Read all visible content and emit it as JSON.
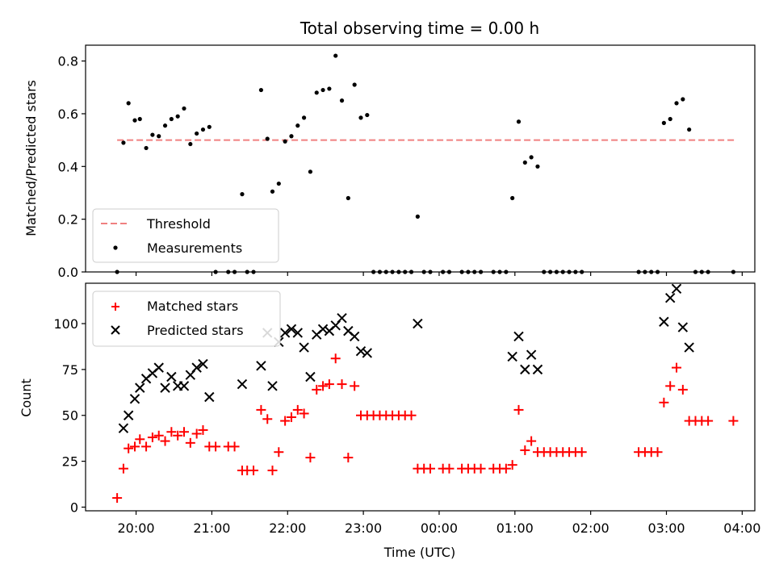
{
  "chart_data": [
    {
      "type": "scatter",
      "title": "Total observing time = 0.00 h",
      "ylabel": "Matched/Predicted stars",
      "xlim": [
        "19:20",
        "04:10"
      ],
      "ylim": [
        0,
        0.86
      ],
      "y_ticks": [
        0.0,
        0.2,
        0.4,
        0.6,
        0.8
      ],
      "y_tick_labels": [
        "0.0",
        "0.2",
        "0.4",
        "0.6",
        "0.8"
      ],
      "threshold": {
        "name": "Threshold",
        "value": 0.5,
        "x_range": [
          "19:45",
          "03:55"
        ],
        "color": "#f08080",
        "style": "dashed"
      },
      "series": [
        {
          "name": "Measurements",
          "color": "#000000",
          "marker": "dot",
          "points": [
            {
              "x": "19:45",
              "y": 0.0
            },
            {
              "x": "19:50",
              "y": 0.49
            },
            {
              "x": "19:54",
              "y": 0.64
            },
            {
              "x": "19:59",
              "y": 0.575
            },
            {
              "x": "20:03",
              "y": 0.58
            },
            {
              "x": "20:08",
              "y": 0.47
            },
            {
              "x": "20:13",
              "y": 0.52
            },
            {
              "x": "20:18",
              "y": 0.515
            },
            {
              "x": "20:23",
              "y": 0.555
            },
            {
              "x": "20:28",
              "y": 0.58
            },
            {
              "x": "20:33",
              "y": 0.59
            },
            {
              "x": "20:38",
              "y": 0.62
            },
            {
              "x": "20:43",
              "y": 0.485
            },
            {
              "x": "20:48",
              "y": 0.525
            },
            {
              "x": "20:53",
              "y": 0.54
            },
            {
              "x": "20:58",
              "y": 0.55
            },
            {
              "x": "21:03",
              "y": 0.0
            },
            {
              "x": "21:13",
              "y": 0.0
            },
            {
              "x": "21:18",
              "y": 0.0
            },
            {
              "x": "21:24",
              "y": 0.295
            },
            {
              "x": "21:28",
              "y": 0.0
            },
            {
              "x": "21:33",
              "y": 0.0
            },
            {
              "x": "21:39",
              "y": 0.69
            },
            {
              "x": "21:44",
              "y": 0.505
            },
            {
              "x": "21:48",
              "y": 0.305
            },
            {
              "x": "21:53",
              "y": 0.335
            },
            {
              "x": "21:58",
              "y": 0.495
            },
            {
              "x": "22:03",
              "y": 0.515
            },
            {
              "x": "22:08",
              "y": 0.555
            },
            {
              "x": "22:13",
              "y": 0.585
            },
            {
              "x": "22:18",
              "y": 0.38
            },
            {
              "x": "22:23",
              "y": 0.68
            },
            {
              "x": "22:28",
              "y": 0.69
            },
            {
              "x": "22:33",
              "y": 0.695
            },
            {
              "x": "22:38",
              "y": 0.82
            },
            {
              "x": "22:43",
              "y": 0.65
            },
            {
              "x": "22:48",
              "y": 0.28
            },
            {
              "x": "22:53",
              "y": 0.71
            },
            {
              "x": "22:58",
              "y": 0.585
            },
            {
              "x": "23:03",
              "y": 0.595
            },
            {
              "x": "23:08",
              "y": 0.0
            },
            {
              "x": "23:13",
              "y": 0.0
            },
            {
              "x": "23:18",
              "y": 0.0
            },
            {
              "x": "23:23",
              "y": 0.0
            },
            {
              "x": "23:28",
              "y": 0.0
            },
            {
              "x": "23:33",
              "y": 0.0
            },
            {
              "x": "23:38",
              "y": 0.0
            },
            {
              "x": "23:43",
              "y": 0.21
            },
            {
              "x": "23:48",
              "y": 0.0
            },
            {
              "x": "23:53",
              "y": 0.0
            },
            {
              "x": "00:03",
              "y": 0.0
            },
            {
              "x": "00:08",
              "y": 0.0
            },
            {
              "x": "00:18",
              "y": 0.0
            },
            {
              "x": "00:23",
              "y": 0.0
            },
            {
              "x": "00:28",
              "y": 0.0
            },
            {
              "x": "00:33",
              "y": 0.0
            },
            {
              "x": "00:43",
              "y": 0.0
            },
            {
              "x": "00:48",
              "y": 0.0
            },
            {
              "x": "00:53",
              "y": 0.0
            },
            {
              "x": "00:58",
              "y": 0.28
            },
            {
              "x": "01:03",
              "y": 0.57
            },
            {
              "x": "01:08",
              "y": 0.415
            },
            {
              "x": "01:13",
              "y": 0.435
            },
            {
              "x": "01:18",
              "y": 0.4
            },
            {
              "x": "01:23",
              "y": 0.0
            },
            {
              "x": "01:28",
              "y": 0.0
            },
            {
              "x": "01:33",
              "y": 0.0
            },
            {
              "x": "01:38",
              "y": 0.0
            },
            {
              "x": "01:43",
              "y": 0.0
            },
            {
              "x": "01:48",
              "y": 0.0
            },
            {
              "x": "01:53",
              "y": 0.0
            },
            {
              "x": "02:38",
              "y": 0.0
            },
            {
              "x": "02:43",
              "y": 0.0
            },
            {
              "x": "02:48",
              "y": 0.0
            },
            {
              "x": "02:53",
              "y": 0.0
            },
            {
              "x": "02:58",
              "y": 0.565
            },
            {
              "x": "03:03",
              "y": 0.58
            },
            {
              "x": "03:08",
              "y": 0.64
            },
            {
              "x": "03:13",
              "y": 0.655
            },
            {
              "x": "03:18",
              "y": 0.54
            },
            {
              "x": "03:23",
              "y": 0.0
            },
            {
              "x": "03:28",
              "y": 0.0
            },
            {
              "x": "03:33",
              "y": 0.0
            },
            {
              "x": "03:53",
              "y": 0.0
            }
          ]
        }
      ],
      "legend": {
        "placement": "lower-left",
        "entries": [
          "Threshold",
          "Measurements"
        ]
      }
    },
    {
      "type": "scatter",
      "xlabel": "Time (UTC)",
      "ylabel": "Count",
      "xlim": [
        "19:20",
        "04:10"
      ],
      "ylim": [
        -2,
        122
      ],
      "x_ticks": [
        "20:00",
        "21:00",
        "22:00",
        "23:00",
        "00:00",
        "01:00",
        "02:00",
        "03:00",
        "04:00"
      ],
      "y_ticks": [
        0,
        25,
        50,
        75,
        100
      ],
      "y_tick_labels": [
        "0",
        "25",
        "50",
        "75",
        "100"
      ],
      "series": [
        {
          "name": "Matched stars",
          "color": "#ff0000",
          "marker": "plus",
          "points": [
            {
              "x": "19:45",
              "y": 5
            },
            {
              "x": "19:50",
              "y": 21
            },
            {
              "x": "19:54",
              "y": 32
            },
            {
              "x": "19:59",
              "y": 33
            },
            {
              "x": "20:03",
              "y": 37
            },
            {
              "x": "20:08",
              "y": 33
            },
            {
              "x": "20:13",
              "y": 38
            },
            {
              "x": "20:18",
              "y": 39
            },
            {
              "x": "20:23",
              "y": 36
            },
            {
              "x": "20:28",
              "y": 41
            },
            {
              "x": "20:33",
              "y": 39
            },
            {
              "x": "20:38",
              "y": 41
            },
            {
              "x": "20:43",
              "y": 35
            },
            {
              "x": "20:48",
              "y": 40
            },
            {
              "x": "20:53",
              "y": 42
            },
            {
              "x": "20:58",
              "y": 33
            },
            {
              "x": "21:03",
              "y": 33
            },
            {
              "x": "21:13",
              "y": 33
            },
            {
              "x": "21:18",
              "y": 33
            },
            {
              "x": "21:24",
              "y": 20
            },
            {
              "x": "21:28",
              "y": 20
            },
            {
              "x": "21:33",
              "y": 20
            },
            {
              "x": "21:39",
              "y": 53
            },
            {
              "x": "21:44",
              "y": 48
            },
            {
              "x": "21:48",
              "y": 20
            },
            {
              "x": "21:53",
              "y": 30
            },
            {
              "x": "21:58",
              "y": 47
            },
            {
              "x": "22:03",
              "y": 49
            },
            {
              "x": "22:08",
              "y": 53
            },
            {
              "x": "22:13",
              "y": 51
            },
            {
              "x": "22:18",
              "y": 27
            },
            {
              "x": "22:23",
              "y": 64
            },
            {
              "x": "22:28",
              "y": 66
            },
            {
              "x": "22:33",
              "y": 67
            },
            {
              "x": "22:38",
              "y": 81
            },
            {
              "x": "22:43",
              "y": 67
            },
            {
              "x": "22:48",
              "y": 27
            },
            {
              "x": "22:53",
              "y": 66
            },
            {
              "x": "22:58",
              "y": 50
            },
            {
              "x": "23:03",
              "y": 50
            },
            {
              "x": "23:08",
              "y": 50
            },
            {
              "x": "23:13",
              "y": 50
            },
            {
              "x": "23:18",
              "y": 50
            },
            {
              "x": "23:23",
              "y": 50
            },
            {
              "x": "23:28",
              "y": 50
            },
            {
              "x": "23:33",
              "y": 50
            },
            {
              "x": "23:38",
              "y": 50
            },
            {
              "x": "23:43",
              "y": 21
            },
            {
              "x": "23:48",
              "y": 21
            },
            {
              "x": "23:53",
              "y": 21
            },
            {
              "x": "00:03",
              "y": 21
            },
            {
              "x": "00:08",
              "y": 21
            },
            {
              "x": "00:18",
              "y": 21
            },
            {
              "x": "00:23",
              "y": 21
            },
            {
              "x": "00:28",
              "y": 21
            },
            {
              "x": "00:33",
              "y": 21
            },
            {
              "x": "00:43",
              "y": 21
            },
            {
              "x": "00:48",
              "y": 21
            },
            {
              "x": "00:53",
              "y": 21
            },
            {
              "x": "00:58",
              "y": 23
            },
            {
              "x": "01:03",
              "y": 53
            },
            {
              "x": "01:08",
              "y": 31
            },
            {
              "x": "01:13",
              "y": 36
            },
            {
              "x": "01:18",
              "y": 30
            },
            {
              "x": "01:23",
              "y": 30
            },
            {
              "x": "01:28",
              "y": 30
            },
            {
              "x": "01:33",
              "y": 30
            },
            {
              "x": "01:38",
              "y": 30
            },
            {
              "x": "01:43",
              "y": 30
            },
            {
              "x": "01:48",
              "y": 30
            },
            {
              "x": "01:53",
              "y": 30
            },
            {
              "x": "02:38",
              "y": 30
            },
            {
              "x": "02:43",
              "y": 30
            },
            {
              "x": "02:48",
              "y": 30
            },
            {
              "x": "02:53",
              "y": 30
            },
            {
              "x": "02:58",
              "y": 57
            },
            {
              "x": "03:03",
              "y": 66
            },
            {
              "x": "03:08",
              "y": 76
            },
            {
              "x": "03:13",
              "y": 64
            },
            {
              "x": "03:18",
              "y": 47
            },
            {
              "x": "03:23",
              "y": 47
            },
            {
              "x": "03:28",
              "y": 47
            },
            {
              "x": "03:33",
              "y": 47
            },
            {
              "x": "03:53",
              "y": 47
            }
          ]
        },
        {
          "name": "Predicted stars",
          "color": "#000000",
          "marker": "x",
          "points": [
            {
              "x": "19:50",
              "y": 43
            },
            {
              "x": "19:54",
              "y": 50
            },
            {
              "x": "19:59",
              "y": 59
            },
            {
              "x": "20:03",
              "y": 65
            },
            {
              "x": "20:08",
              "y": 70
            },
            {
              "x": "20:13",
              "y": 73
            },
            {
              "x": "20:18",
              "y": 76
            },
            {
              "x": "20:23",
              "y": 65
            },
            {
              "x": "20:28",
              "y": 71
            },
            {
              "x": "20:33",
              "y": 66
            },
            {
              "x": "20:38",
              "y": 66
            },
            {
              "x": "20:43",
              "y": 72
            },
            {
              "x": "20:48",
              "y": 76
            },
            {
              "x": "20:53",
              "y": 78
            },
            {
              "x": "20:58",
              "y": 60
            },
            {
              "x": "21:24",
              "y": 67
            },
            {
              "x": "21:39",
              "y": 77
            },
            {
              "x": "21:44",
              "y": 95
            },
            {
              "x": "21:48",
              "y": 66
            },
            {
              "x": "21:53",
              "y": 90
            },
            {
              "x": "21:58",
              "y": 95
            },
            {
              "x": "22:03",
              "y": 97
            },
            {
              "x": "22:08",
              "y": 95
            },
            {
              "x": "22:13",
              "y": 87
            },
            {
              "x": "22:18",
              "y": 71
            },
            {
              "x": "22:23",
              "y": 94
            },
            {
              "x": "22:28",
              "y": 97
            },
            {
              "x": "22:33",
              "y": 96
            },
            {
              "x": "22:38",
              "y": 99
            },
            {
              "x": "22:43",
              "y": 103
            },
            {
              "x": "22:48",
              "y": 96
            },
            {
              "x": "22:53",
              "y": 93
            },
            {
              "x": "22:58",
              "y": 85
            },
            {
              "x": "23:03",
              "y": 84
            },
            {
              "x": "23:43",
              "y": 100
            },
            {
              "x": "00:58",
              "y": 82
            },
            {
              "x": "01:03",
              "y": 93
            },
            {
              "x": "01:08",
              "y": 75
            },
            {
              "x": "01:13",
              "y": 83
            },
            {
              "x": "01:18",
              "y": 75
            },
            {
              "x": "02:58",
              "y": 101
            },
            {
              "x": "03:03",
              "y": 114
            },
            {
              "x": "03:08",
              "y": 119
            },
            {
              "x": "03:13",
              "y": 98
            },
            {
              "x": "03:18",
              "y": 87
            }
          ]
        }
      ],
      "legend": {
        "placement": "top-left",
        "entries": [
          "Matched stars",
          "Predicted stars"
        ]
      }
    }
  ]
}
